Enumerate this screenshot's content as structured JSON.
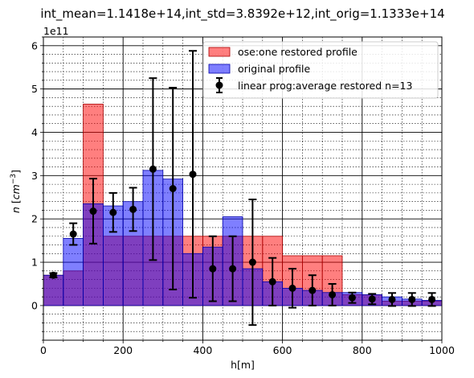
{
  "chart_data": {
    "type": "bar",
    "title": "int_mean=1.1418e+14,int_std=3.8392e+12,int_orig=1.1333e+14",
    "xlabel": "h[m]",
    "ylabel": "n [cm^-3]",
    "y_offset_text": "1e11",
    "xlim": [
      0,
      1000
    ],
    "ylim": [
      -0.8,
      6.2
    ],
    "y_scale_factor": 100000000000.0,
    "x_ticks": [
      0,
      200,
      400,
      600,
      800,
      1000
    ],
    "x_tick_labels": [
      "0",
      "200",
      "400",
      "600",
      "800",
      "1000"
    ],
    "y_ticks": [
      0,
      1,
      2,
      3,
      4,
      5,
      6
    ],
    "y_tick_labels": [
      "0",
      "1",
      "2",
      "3",
      "4",
      "5",
      "6"
    ],
    "grid": "major and minor",
    "legend_position": "top-right",
    "bin_edges": [
      0,
      50,
      100,
      150,
      200,
      250,
      300,
      350,
      400,
      450,
      500,
      550,
      600,
      650,
      700,
      750,
      800,
      850,
      900,
      950,
      1000
    ],
    "series": [
      {
        "name": "ose:one restored profile",
        "kind": "histogram",
        "color": "#ff0000",
        "values": [
          0.7,
          0.8,
          4.65,
          1.6,
          1.6,
          1.6,
          1.6,
          1.6,
          1.6,
          1.6,
          1.6,
          1.6,
          1.15,
          1.15,
          1.15,
          0.25,
          0.25,
          0.1,
          0.1,
          0.1
        ]
      },
      {
        "name": "original profile",
        "kind": "histogram",
        "color": "#0000ff",
        "values": [
          0.7,
          1.55,
          2.35,
          2.3,
          2.4,
          3.12,
          2.92,
          1.2,
          1.35,
          2.05,
          0.85,
          0.55,
          0.4,
          0.35,
          0.3,
          0.3,
          0.25,
          0.2,
          0.15,
          0.12
        ]
      },
      {
        "name": "linear prog:average restored n=13",
        "kind": "errorbar",
        "color": "#000000",
        "x": [
          25,
          75,
          125,
          175,
          225,
          275,
          325,
          375,
          425,
          475,
          525,
          575,
          625,
          675,
          725,
          775,
          825,
          875,
          925,
          975
        ],
        "values": [
          0.7,
          1.65,
          2.18,
          2.15,
          2.22,
          3.15,
          2.7,
          3.03,
          0.85,
          0.85,
          1.0,
          0.55,
          0.4,
          0.35,
          0.25,
          0.18,
          0.15,
          0.14,
          0.14,
          0.14
        ],
        "yerr": [
          0.05,
          0.25,
          0.75,
          0.45,
          0.5,
          2.1,
          2.33,
          2.85,
          0.75,
          0.75,
          1.45,
          0.55,
          0.45,
          0.35,
          0.25,
          0.12,
          0.12,
          0.15,
          0.15,
          0.15
        ]
      }
    ]
  }
}
